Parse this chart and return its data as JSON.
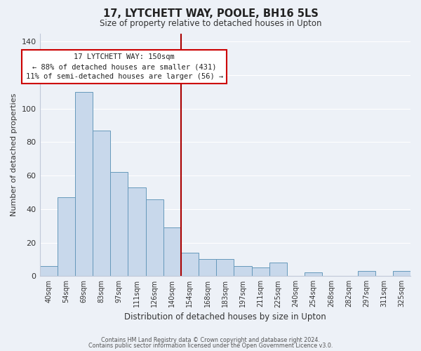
{
  "title": "17, LYTCHETT WAY, POOLE, BH16 5LS",
  "subtitle": "Size of property relative to detached houses in Upton",
  "xlabel": "Distribution of detached houses by size in Upton",
  "ylabel": "Number of detached properties",
  "bar_labels": [
    "40sqm",
    "54sqm",
    "69sqm",
    "83sqm",
    "97sqm",
    "111sqm",
    "126sqm",
    "140sqm",
    "154sqm",
    "168sqm",
    "183sqm",
    "197sqm",
    "211sqm",
    "225sqm",
    "240sqm",
    "254sqm",
    "268sqm",
    "282sqm",
    "297sqm",
    "311sqm",
    "325sqm"
  ],
  "bar_values": [
    6,
    47,
    110,
    87,
    62,
    53,
    46,
    29,
    14,
    10,
    10,
    6,
    5,
    8,
    0,
    2,
    0,
    0,
    3,
    0,
    3
  ],
  "bar_color": "#c8d8eb",
  "bar_edge_color": "#6699bb",
  "highlight_line_color": "#aa0000",
  "ylim": [
    0,
    145
  ],
  "yticks": [
    0,
    20,
    40,
    60,
    80,
    100,
    120,
    140
  ],
  "annotation_title": "17 LYTCHETT WAY: 150sqm",
  "annotation_line1": "← 88% of detached houses are smaller (431)",
  "annotation_line2": "11% of semi-detached houses are larger (56) →",
  "annotation_box_color": "#ffffff",
  "annotation_box_edge": "#cc0000",
  "footer1": "Contains HM Land Registry data © Crown copyright and database right 2024.",
  "footer2": "Contains public sector information licensed under the Open Government Licence v3.0.",
  "bg_color": "#edf1f7",
  "grid_color": "#ffffff",
  "spine_color": "#c0c8d8"
}
